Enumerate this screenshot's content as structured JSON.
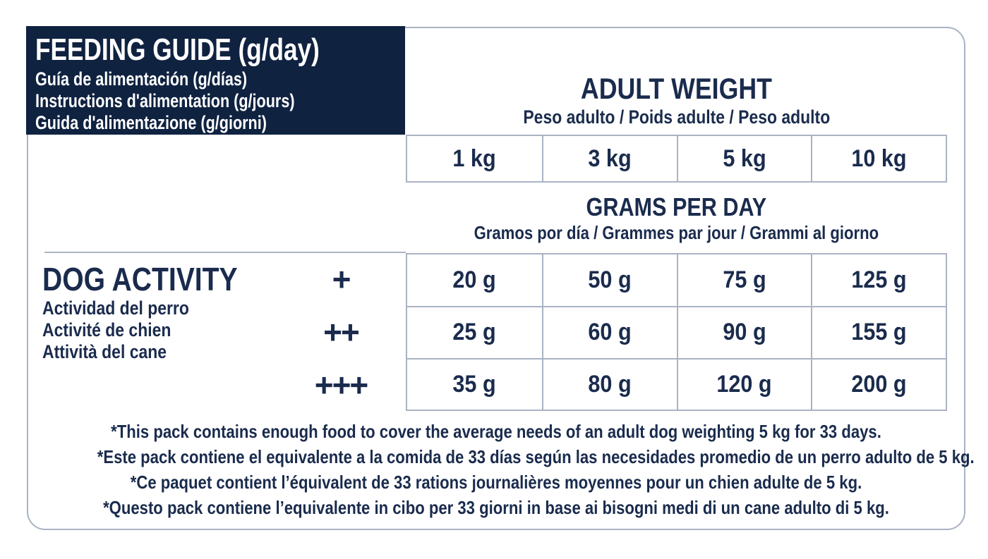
{
  "colors": {
    "header_background": "#0f2240",
    "text": "#1a2b4d",
    "grid_line": "#a9b3c3"
  },
  "header_block": {
    "title": "FEEDING GUIDE (g/day)",
    "subtitles": [
      "Guía de alimentación (g/días)",
      "Instructions d'alimentation (g/jours)",
      "Guida d'alimentazione (g/giorni)"
    ]
  },
  "adult_weight": {
    "title": "ADULT WEIGHT",
    "subtitle": "Peso adulto / Poids adulte / Peso adulto"
  },
  "weights": [
    "1 kg",
    "3 kg",
    "5 kg",
    "10 kg"
  ],
  "grams_per_day": {
    "title": "GRAMS PER DAY",
    "subtitle": "Gramos por día / Grammes par jour / Grammi al giorno"
  },
  "dog_activity": {
    "title": "DOG ACTIVITY",
    "subtitles": [
      "Actividad del perro",
      "Activité de chien",
      "Attività del cane"
    ]
  },
  "rows": [
    {
      "activity": "+",
      "values": [
        "20 g",
        "50 g",
        "75 g",
        "125 g"
      ]
    },
    {
      "activity": "++",
      "values": [
        "25 g",
        "60 g",
        "90 g",
        "155 g"
      ]
    },
    {
      "activity": "+++",
      "values": [
        "35 g",
        "80 g",
        "120 g",
        "200 g"
      ]
    }
  ],
  "footnotes": [
    "*This pack contains enough food to cover the average needs of an adult dog weighting 5 kg for 33 days.",
    "*Este pack contiene el equivalente a la comida de 33 días según las necesidades promedio de un perro adulto de 5 kg.",
    "*Ce paquet contient l’équivalent de 33 rations journalières moyennes pour un chien adulte de 5 kg.",
    "*Questo pack contiene l’equivalente in cibo per 33 giorni in base ai bisogni medi di un cane adulto di 5 kg."
  ]
}
